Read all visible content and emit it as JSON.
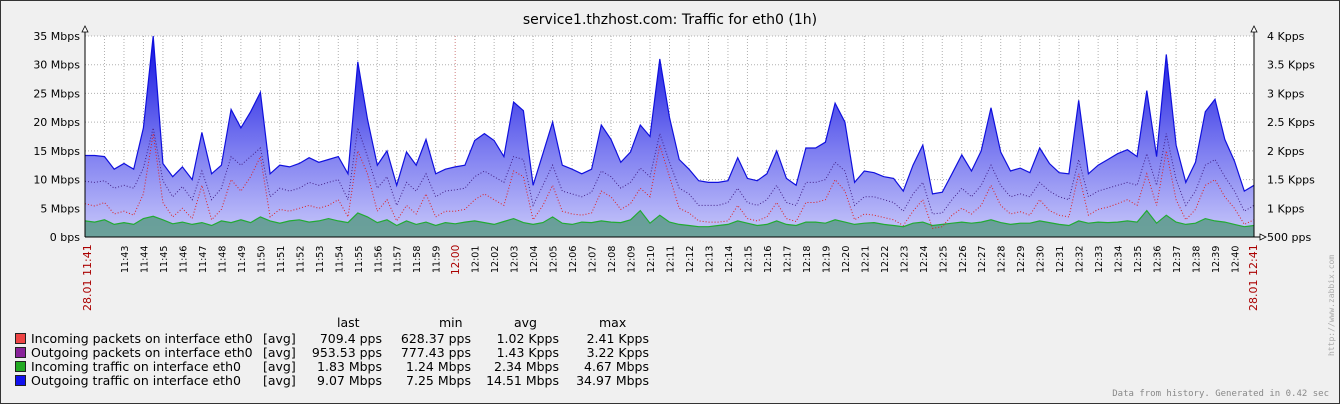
{
  "chart_data": {
    "type": "area",
    "title": "service1.thzhost.com: Traffic for eth0  (1h)",
    "x_date": "28.01",
    "x_start": "11:41",
    "x_end": "12:41",
    "x_ticks": [
      "11:43",
      "11:44",
      "11:45",
      "11:46",
      "11:47",
      "11:48",
      "11:49",
      "11:50",
      "11:51",
      "11:52",
      "11:53",
      "11:54",
      "11:55",
      "11:56",
      "11:57",
      "11:58",
      "11:59",
      "12:00",
      "12:01",
      "12:02",
      "12:03",
      "12:04",
      "12:05",
      "12:06",
      "12:07",
      "12:08",
      "12:09",
      "12:10",
      "12:11",
      "12:12",
      "12:13",
      "12:14",
      "12:15",
      "12:16",
      "12:17",
      "12:18",
      "12:19",
      "12:20",
      "12:21",
      "12:22",
      "12:23",
      "12:24",
      "12:25",
      "12:26",
      "12:27",
      "12:28",
      "12:29",
      "12:30",
      "12:31",
      "12:32",
      "12:33",
      "12:34",
      "12:35",
      "12:36",
      "12:37",
      "12:38",
      "12:39",
      "12:40"
    ],
    "y_left_ticks": [
      "0 bps",
      "5 Mbps",
      "10 Mbps",
      "15 Mbps",
      "20 Mbps",
      "25 Mbps",
      "30 Mbps",
      "35 Mbps"
    ],
    "y_left_range": [
      0,
      35
    ],
    "y_right_ticks": [
      "500 pps",
      "1 Kpps",
      "1.5 Kpps",
      "2 Kpps",
      "2.5 Kpps",
      "3 Kpps",
      "3.5 Kpps",
      "4 Kpps"
    ],
    "y_right_range": [
      500,
      4000
    ],
    "grid": true,
    "series": [
      {
        "name": "Outgoing traffic on interface eth0",
        "axis": "left",
        "style": "filled",
        "color": "#1010dd",
        "values": [
          14.2,
          14.2,
          14.0,
          11.8,
          12.8,
          11.8,
          19.0,
          35.0,
          12.8,
          10.5,
          12.2,
          10.0,
          18.2,
          11.0,
          12.5,
          22.2,
          19.0,
          21.8,
          25.2,
          11.0,
          12.5,
          12.2,
          12.8,
          13.8,
          13.0,
          13.5,
          14.0,
          11.0,
          30.5,
          20.5,
          12.5,
          15.0,
          9.0,
          14.8,
          12.5,
          17.0,
          11.0,
          11.8,
          12.2,
          12.5,
          16.8,
          18.0,
          16.8,
          14.0,
          23.5,
          22.0,
          9.0,
          14.5,
          20.0,
          12.5,
          11.8,
          11.0,
          11.8,
          19.5,
          17.0,
          13.0,
          14.8,
          19.5,
          17.5,
          31.0,
          20.8,
          13.5,
          11.8,
          9.8,
          9.5,
          9.5,
          9.8,
          13.8,
          10.2,
          9.8,
          11.0,
          15.0,
          10.2,
          9.0,
          15.5,
          15.5,
          16.5,
          23.3,
          20.0,
          9.5,
          11.5,
          11.2,
          10.5,
          10.2,
          8.0,
          12.5,
          16.0,
          7.5,
          7.8,
          11.0,
          14.3,
          11.5,
          15.0,
          22.5,
          14.8,
          11.5,
          12.0,
          11.2,
          15.5,
          12.8,
          11.2,
          11.0,
          23.8,
          11.0,
          12.5,
          13.5,
          14.5,
          15.2,
          14.0,
          25.5,
          14.0,
          31.8,
          16.0,
          9.5,
          13.0,
          21.8,
          24.0,
          17.0,
          13.2,
          8.0,
          9.0
        ]
      },
      {
        "name": "Incoming traffic on interface eth0",
        "axis": "left",
        "style": "filled",
        "color": "#22aa33",
        "values": [
          2.8,
          2.6,
          3.0,
          2.2,
          2.5,
          2.2,
          3.2,
          3.6,
          3.0,
          2.3,
          2.6,
          2.2,
          2.5,
          2.0,
          2.8,
          2.5,
          3.0,
          2.5,
          3.5,
          2.8,
          2.4,
          2.8,
          3.0,
          2.6,
          2.8,
          3.2,
          2.8,
          2.5,
          4.2,
          3.5,
          2.5,
          3.0,
          2.0,
          2.8,
          2.2,
          2.6,
          2.0,
          2.5,
          2.3,
          2.6,
          2.8,
          2.5,
          2.2,
          2.7,
          3.2,
          2.5,
          2.2,
          2.5,
          3.5,
          2.4,
          2.2,
          2.6,
          2.5,
          2.8,
          2.6,
          2.5,
          3.0,
          4.6,
          2.4,
          3.8,
          2.6,
          2.2,
          2.0,
          1.8,
          1.8,
          2.0,
          2.2,
          2.8,
          2.4,
          2.0,
          2.2,
          2.8,
          2.2,
          2.0,
          2.6,
          2.6,
          2.4,
          3.0,
          2.6,
          2.2,
          2.4,
          2.5,
          2.2,
          2.0,
          1.8,
          2.4,
          2.6,
          2.0,
          2.2,
          2.4,
          2.6,
          2.4,
          2.6,
          3.0,
          2.5,
          2.2,
          2.4,
          2.4,
          2.8,
          2.5,
          2.2,
          2.0,
          2.8,
          2.4,
          2.6,
          2.5,
          2.6,
          2.8,
          2.6,
          4.6,
          2.4,
          3.8,
          2.6,
          2.2,
          2.4,
          3.2,
          2.8,
          2.6,
          2.2,
          1.8,
          2.0
        ]
      },
      {
        "name": "Outgoing packets on interface eth0",
        "axis": "right",
        "style": "dotted",
        "color": "#442288",
        "values": [
          1470,
          1450,
          1480,
          1350,
          1400,
          1350,
          1700,
          2400,
          1480,
          1200,
          1380,
          1150,
          1650,
          1150,
          1350,
          1900,
          1750,
          1900,
          2050,
          1200,
          1350,
          1300,
          1350,
          1450,
          1400,
          1450,
          1500,
          1150,
          2400,
          1900,
          1350,
          1550,
          1050,
          1450,
          1300,
          1600,
          1200,
          1300,
          1320,
          1350,
          1550,
          1650,
          1550,
          1450,
          1900,
          1850,
          1050,
          1400,
          1750,
          1300,
          1250,
          1200,
          1280,
          1650,
          1550,
          1350,
          1450,
          1700,
          1550,
          2300,
          1800,
          1350,
          1250,
          1050,
          1050,
          1050,
          1100,
          1350,
          1100,
          1050,
          1150,
          1400,
          1100,
          1050,
          1450,
          1450,
          1500,
          1800,
          1650,
          1050,
          1200,
          1200,
          1150,
          1100,
          950,
          1250,
          1450,
          900,
          920,
          1150,
          1350,
          1200,
          1400,
          1750,
          1400,
          1200,
          1250,
          1200,
          1450,
          1300,
          1200,
          1150,
          1850,
          1200,
          1300,
          1350,
          1400,
          1450,
          1400,
          1950,
          1400,
          2300,
          1500,
          1050,
          1300,
          1750,
          1850,
          1550,
          1300,
          950,
          1050
        ]
      },
      {
        "name": "Incoming packets on interface eth0",
        "axis": "right",
        "style": "dotted",
        "color": "#dd2222",
        "values": [
          1080,
          1040,
          1100,
          900,
          950,
          880,
          1250,
          2300,
          1100,
          850,
          1000,
          820,
          1400,
          800,
          980,
          1500,
          1300,
          1550,
          1900,
          850,
          980,
          950,
          1000,
          1050,
          1000,
          1050,
          1150,
          850,
          2000,
          1600,
          950,
          1150,
          780,
          1050,
          900,
          1250,
          850,
          950,
          950,
          980,
          1150,
          1250,
          1150,
          1050,
          1650,
          1550,
          800,
          1050,
          1400,
          950,
          900,
          880,
          920,
          1300,
          1200,
          980,
          1080,
          1350,
          1200,
          2100,
          1550,
          1000,
          920,
          780,
          760,
          760,
          780,
          1050,
          820,
          780,
          850,
          1100,
          820,
          770,
          1100,
          1100,
          1150,
          1500,
          1300,
          800,
          900,
          880,
          840,
          800,
          700,
          950,
          1150,
          650,
          680,
          880,
          1000,
          900,
          1050,
          1400,
          1050,
          900,
          940,
          880,
          1150,
          960,
          880,
          850,
          1600,
          880,
          980,
          1020,
          1080,
          1150,
          1050,
          1600,
          1050,
          2000,
          1150,
          800,
          980,
          1400,
          1500,
          1200,
          1000,
          720,
          800
        ]
      }
    ]
  },
  "legend": {
    "headers": {
      "last": "last",
      "min": "min",
      "avg": "avg",
      "max": "max"
    },
    "rows": [
      {
        "name": "Incoming packets on interface eth0",
        "color": "#ee4444",
        "fn": "[avg]",
        "last": "709.4 pps",
        "min": "628.37 pps",
        "avg": "1.02 Kpps",
        "max": "2.41 Kpps"
      },
      {
        "name": "Outgoing packets on interface eth0",
        "color": "#882299",
        "fn": "[avg]",
        "last": "953.53 pps",
        "min": "777.43 pps",
        "avg": "1.43 Kpps",
        "max": "3.22 Kpps"
      },
      {
        "name": "Incoming traffic on interface eth0",
        "color": "#22aa22",
        "fn": "[avg]",
        "last": "1.83 Mbps",
        "min": "1.24 Mbps",
        "avg": "2.34 Mbps",
        "max": "4.67 Mbps"
      },
      {
        "name": "Outgoing traffic on interface eth0",
        "color": "#1111ee",
        "fn": "[avg]",
        "last": "9.07 Mbps",
        "min": "7.25 Mbps",
        "avg": "14.51 Mbps",
        "max": "34.97 Mbps"
      }
    ]
  },
  "footer": "Data from history. Generated in 0.42 sec",
  "watermark": "http://www.zabbix.com"
}
